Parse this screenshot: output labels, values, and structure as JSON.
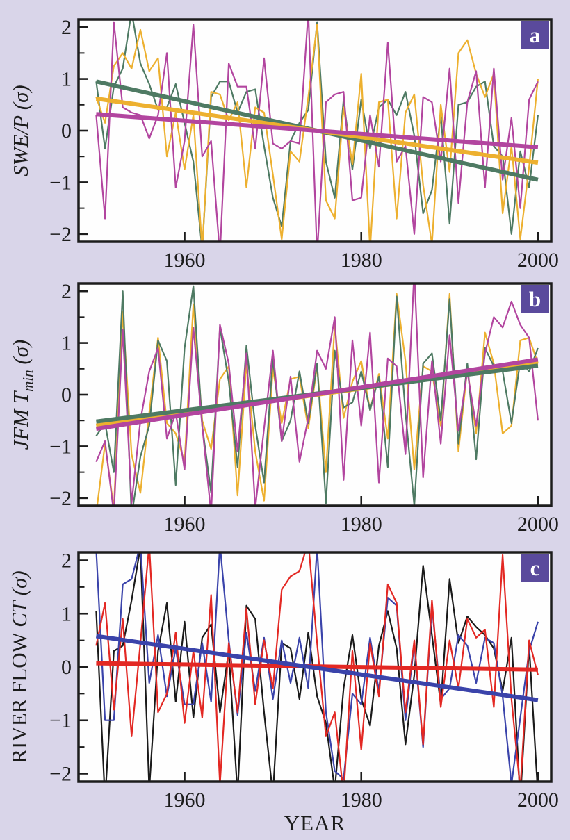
{
  "figure": {
    "xlabel": "YEAR"
  },
  "colors": {
    "background": "#d9d5e9",
    "plot_background": "#fefefe",
    "axis": "#1c1c1c",
    "badge": "#5a4a9c",
    "badge_text": "#ffffff"
  },
  "chart_data": [
    {
      "type": "line",
      "panel": "a",
      "ylabel": {
        "prefix": "",
        "main": "SWE/P",
        "sub": "",
        "suffix": " (σ)"
      },
      "xlim": [
        1948,
        2001.5
      ],
      "ylim": [
        -2.15,
        2.15
      ],
      "grid": false,
      "legend": "none",
      "x_ticks": {
        "values": [
          1960,
          1980,
          2000
        ],
        "labels": [
          "1960",
          "1980",
          "2000"
        ]
      },
      "y_ticks": {
        "values": [
          -2,
          -1,
          0,
          1,
          2
        ],
        "labels": [
          "−2",
          "−1",
          "0",
          "1",
          "2"
        ],
        "minor": [
          -1.5,
          -0.5,
          0.5,
          1.5
        ]
      },
      "years": [
        1950,
        1951,
        1952,
        1953,
        1954,
        1955,
        1956,
        1957,
        1958,
        1959,
        1960,
        1961,
        1962,
        1963,
        1964,
        1965,
        1966,
        1967,
        1968,
        1969,
        1970,
        1971,
        1972,
        1973,
        1974,
        1975,
        1976,
        1977,
        1978,
        1979,
        1980,
        1981,
        1982,
        1983,
        1984,
        1985,
        1986,
        1987,
        1988,
        1989,
        1990,
        1991,
        1992,
        1993,
        1994,
        1995,
        1996,
        1997,
        1998,
        1999,
        2000
      ],
      "series": [
        {
          "name": "green",
          "color": "#4e7a63",
          "values": [
            0.95,
            -0.35,
            0.85,
            1.2,
            2.3,
            1.3,
            0.9,
            0.4,
            0.45,
            0.9,
            0.15,
            -0.6,
            -2.3,
            0.65,
            0.95,
            0.95,
            0.35,
            0.75,
            0.8,
            -0.3,
            -1.3,
            -1.85,
            -0.2,
            0.15,
            0.4,
            2.1,
            -0.6,
            -1.3,
            0.6,
            -0.75,
            0.6,
            -0.35,
            0.45,
            0.6,
            0.3,
            0.75,
            -0.1,
            -1.6,
            -1.15,
            0.3,
            -1.8,
            0.5,
            0.55,
            0.85,
            0.95,
            -0.3,
            -0.5,
            -2.0,
            -0.4,
            -1.1,
            0.3
          ]
        },
        {
          "name": "orange",
          "color": "#edb02f",
          "values": [
            0.65,
            0.15,
            1.25,
            1.5,
            1.2,
            1.95,
            1.15,
            1.4,
            -0.5,
            0.35,
            -0.75,
            0.3,
            -2.3,
            0.75,
            0.7,
            0.2,
            0.55,
            -1.1,
            0.45,
            0.35,
            -0.85,
            -2.1,
            -0.4,
            -0.6,
            0.65,
            2.05,
            -1.35,
            -1.7,
            0.45,
            -0.65,
            1.1,
            -2.3,
            0.55,
            0.6,
            -1.7,
            0.35,
            0.7,
            -1.05,
            -2.2,
            0.5,
            -0.8,
            1.5,
            1.75,
            1.1,
            0.65,
            1.1,
            -1.6,
            -0.3,
            -2.1,
            -0.7,
            1.0
          ]
        },
        {
          "name": "magenta",
          "color": "#b2459f",
          "values": [
            0.3,
            -1.7,
            2.1,
            0.45,
            0.35,
            0.3,
            -0.15,
            0.3,
            1.5,
            -1.1,
            -0.2,
            2.05,
            -0.5,
            -0.2,
            -2.4,
            1.3,
            0.85,
            0.85,
            -0.35,
            1.4,
            -0.25,
            -0.35,
            -0.2,
            -0.25,
            2.3,
            -2.4,
            0.55,
            0.7,
            0.75,
            -1.35,
            -1.3,
            0.3,
            -0.7,
            1.7,
            -0.6,
            -0.3,
            -2.0,
            0.65,
            0.55,
            -0.6,
            1.2,
            -1.4,
            0.55,
            1.15,
            -1.1,
            1.2,
            -0.95,
            0.25,
            -1.5,
            0.6,
            0.95
          ]
        }
      ],
      "trends": [
        {
          "name": "green-trend",
          "color": "#4e7a63",
          "start": 0.95,
          "end": -0.95
        },
        {
          "name": "orange-trend",
          "color": "#edb02f",
          "start": 0.62,
          "end": -0.62
        },
        {
          "name": "magenta-trend",
          "color": "#b2459f",
          "start": 0.32,
          "end": -0.32
        }
      ]
    },
    {
      "type": "line",
      "panel": "b",
      "ylabel": {
        "prefix": "",
        "main": "JFM T",
        "sub": "min",
        "suffix": " (σ)"
      },
      "xlim": [
        1948,
        2001.5
      ],
      "ylim": [
        -2.15,
        2.15
      ],
      "grid": false,
      "legend": "none",
      "x_ticks": {
        "values": [
          1960,
          1980,
          2000
        ],
        "labels": [
          "1960",
          "1980",
          "2000"
        ]
      },
      "y_ticks": {
        "values": [
          -2,
          -1,
          0,
          1,
          2
        ],
        "labels": [
          "−2",
          "−1",
          "0",
          "1",
          "2"
        ],
        "minor": [
          -1.5,
          -0.5,
          0.5,
          1.5
        ]
      },
      "years": [
        1950,
        1951,
        1952,
        1953,
        1954,
        1955,
        1956,
        1957,
        1958,
        1959,
        1960,
        1961,
        1962,
        1963,
        1964,
        1965,
        1966,
        1967,
        1968,
        1969,
        1970,
        1971,
        1972,
        1973,
        1974,
        1975,
        1976,
        1977,
        1978,
        1979,
        1980,
        1981,
        1982,
        1983,
        1984,
        1985,
        1986,
        1987,
        1988,
        1989,
        1990,
        1991,
        1992,
        1993,
        1994,
        1995,
        1996,
        1997,
        1998,
        1999,
        2000
      ],
      "series": [
        {
          "name": "orange",
          "color": "#edb02f",
          "values": [
            -2.3,
            -0.95,
            -2.2,
            1.6,
            -1.15,
            -1.9,
            -0.35,
            1.1,
            -0.55,
            -0.75,
            -1.3,
            1.75,
            -0.5,
            -1.05,
            0.3,
            0.55,
            -1.95,
            0.6,
            -1.1,
            -2.05,
            0.5,
            -0.55,
            0.3,
            0.35,
            -0.65,
            0.55,
            -1.5,
            1.35,
            -0.45,
            0.25,
            0.65,
            -0.3,
            0.4,
            -0.85,
            1.95,
            0.65,
            -1.45,
            0.55,
            0.45,
            -0.6,
            1.95,
            -1.1,
            0.5,
            -0.75,
            1.2,
            0.6,
            -0.75,
            -0.6,
            1.05,
            1.1,
            0.6
          ]
        },
        {
          "name": "green",
          "color": "#4e7a63",
          "values": [
            -0.8,
            -0.55,
            -1.5,
            2.0,
            -2.35,
            -1.2,
            -0.6,
            1.05,
            0.65,
            -1.75,
            0.9,
            2.1,
            -0.6,
            -1.9,
            1.3,
            0.25,
            -1.4,
            0.95,
            -0.6,
            -1.7,
            0.7,
            -0.9,
            -0.5,
            0.45,
            -0.55,
            0.6,
            -2.1,
            0.85,
            -0.25,
            -0.15,
            0.45,
            -0.3,
            0.35,
            -1.4,
            1.9,
            -0.35,
            -2.15,
            0.6,
            0.8,
            -0.5,
            1.85,
            -0.95,
            0.6,
            -1.25,
            0.9,
            0.55,
            0.45,
            -0.55,
            0.65,
            0.45,
            0.9
          ]
        },
        {
          "name": "magenta",
          "color": "#b2459f",
          "values": [
            -1.3,
            -0.9,
            -2.3,
            1.25,
            -2.1,
            -0.5,
            0.45,
            0.9,
            -0.85,
            -0.35,
            -1.45,
            1.3,
            -0.6,
            -2.3,
            1.35,
            0.6,
            -1.1,
            0.8,
            -2.2,
            -0.65,
            0.85,
            -0.9,
            0.35,
            -1.3,
            -0.45,
            0.85,
            0.5,
            1.5,
            -1.65,
            1.05,
            -0.6,
            1.2,
            -1.7,
            0.7,
            0.55,
            -1.15,
            2.4,
            -1.6,
            0.65,
            -0.95,
            1.15,
            -0.7,
            0.45,
            -0.6,
            0.8,
            1.5,
            1.3,
            1.8,
            1.35,
            1.1,
            -0.5
          ]
        }
      ],
      "trends": [
        {
          "name": "orange-trend",
          "color": "#edb02f",
          "start": -0.6,
          "end": 0.6
        },
        {
          "name": "green-trend",
          "color": "#4e7a63",
          "start": -0.52,
          "end": 0.56
        },
        {
          "name": "magenta-trend",
          "color": "#b2459f",
          "start": -0.66,
          "end": 0.68
        }
      ]
    },
    {
      "type": "line",
      "panel": "c",
      "ylabel": {
        "prefix": "RIVER FLOW ",
        "main": "CT",
        "sub": "",
        "suffix": " (σ)"
      },
      "xlim": [
        1948,
        2001.5
      ],
      "ylim": [
        -2.15,
        2.15
      ],
      "grid": false,
      "legend": "none",
      "x_ticks": {
        "values": [
          1960,
          1980,
          2000
        ],
        "labels": [
          "1960",
          "1980",
          "2000"
        ]
      },
      "y_ticks": {
        "values": [
          -2,
          -1,
          0,
          1,
          2
        ],
        "labels": [
          "−2",
          "−1",
          "0",
          "1",
          "2"
        ],
        "minor": [
          -1.5,
          -0.5,
          0.5,
          1.5
        ]
      },
      "years": [
        1950,
        1951,
        1952,
        1953,
        1954,
        1955,
        1956,
        1957,
        1958,
        1959,
        1960,
        1961,
        1962,
        1963,
        1964,
        1965,
        1966,
        1967,
        1968,
        1969,
        1970,
        1971,
        1972,
        1973,
        1974,
        1975,
        1976,
        1977,
        1978,
        1979,
        1980,
        1981,
        1982,
        1983,
        1984,
        1985,
        1986,
        1987,
        1988,
        1989,
        1990,
        1991,
        1992,
        1993,
        1994,
        1995,
        1996,
        1997,
        1998,
        1999,
        2000
      ],
      "series": [
        {
          "name": "black",
          "color": "#1a1a1a",
          "values": [
            1.05,
            -2.5,
            0.3,
            0.4,
            1.25,
            2.25,
            -2.3,
            0.3,
            1.2,
            -0.65,
            0.85,
            -0.95,
            0.55,
            0.8,
            -0.85,
            0.3,
            -2.4,
            1.15,
            0.9,
            -0.85,
            -2.4,
            0.45,
            0.35,
            -0.6,
            0.65,
            -0.55,
            -1.05,
            -2.3,
            -0.4,
            0.6,
            -0.6,
            -1.1,
            0.4,
            1.05,
            0.35,
            -1.45,
            -0.15,
            1.9,
            0.6,
            -0.7,
            1.65,
            0.45,
            0.95,
            0.75,
            0.6,
            0.35,
            -0.45,
            0.55,
            -2.5,
            0.4,
            -2.4
          ]
        },
        {
          "name": "blue",
          "color": "#3a43aa",
          "values": [
            2.2,
            -1.0,
            -1.0,
            1.55,
            1.65,
            2.3,
            -0.3,
            0.6,
            -0.55,
            0.35,
            -0.7,
            -0.7,
            0.45,
            -0.65,
            2.3,
            0.5,
            -0.9,
            0.65,
            -0.45,
            0.55,
            -0.6,
            0.5,
            -0.3,
            0.55,
            -0.4,
            2.25,
            -0.85,
            -1.95,
            -2.1,
            -0.5,
            -0.7,
            0.55,
            -0.45,
            1.3,
            1.15,
            -1.0,
            0.45,
            -1.5,
            1.15,
            -0.6,
            -0.4,
            0.6,
            0.4,
            -0.3,
            0.55,
            0.45,
            -0.55,
            -2.2,
            -0.95,
            0.3,
            0.85
          ]
        },
        {
          "name": "red",
          "color": "#e32823",
          "values": [
            0.4,
            1.2,
            -0.8,
            0.9,
            -1.3,
            0.45,
            2.3,
            -0.85,
            -0.5,
            0.65,
            -1.05,
            0.3,
            -0.95,
            1.35,
            -2.2,
            0.45,
            -0.85,
            1.1,
            -0.7,
            0.5,
            -0.4,
            1.45,
            1.7,
            1.8,
            2.35,
            0.45,
            -1.3,
            -0.85,
            -2.4,
            0.3,
            -1.55,
            0.45,
            -0.55,
            1.55,
            1.2,
            -0.85,
            0.5,
            -1.45,
            1.25,
            -0.75,
            0.5,
            -0.4,
            0.9,
            0.55,
            0.7,
            -0.75,
            2.1,
            -0.6,
            -2.3,
            0.5,
            -0.15
          ]
        }
      ],
      "trends": [
        {
          "name": "red-trend",
          "color": "#e32823",
          "start": 0.07,
          "end": -0.05
        },
        {
          "name": "blue-trend",
          "color": "#3a43aa",
          "start": 0.58,
          "end": -0.62
        }
      ]
    }
  ]
}
